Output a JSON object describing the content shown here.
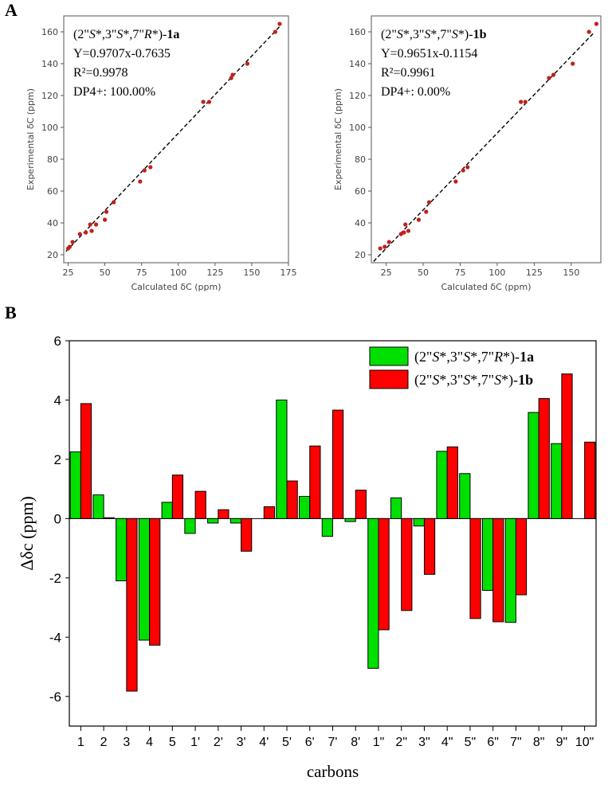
{
  "panels": {
    "a_label": "A",
    "b_label": "B"
  },
  "chart_data": [
    {
      "type": "scatter",
      "id": "1a",
      "xlabel": "Calculated δC (ppm)",
      "ylabel": "Experimental δC (ppm)",
      "xlim": [
        22,
        175
      ],
      "ylim": [
        15,
        170
      ],
      "xticks": [
        25,
        50,
        75,
        100,
        125,
        150,
        175
      ],
      "yticks": [
        20,
        40,
        60,
        80,
        100,
        120,
        140,
        160
      ],
      "fit": {
        "slope": 0.9707,
        "intercept": -0.7635
      },
      "annotations": [
        {
          "pre": "(2\"",
          "i1": "S",
          "m1": "*,3\"",
          "i2": "S",
          "m2": "*,7\"",
          "i3": "R",
          "m3": "*)-",
          "bold": "1a"
        },
        {
          "text": "Y=0.9707x-0.7635"
        },
        {
          "text": "R²=0.9978"
        },
        {
          "text": "DP4+: 100.00%"
        }
      ],
      "points": [
        [
          25,
          24
        ],
        [
          26,
          25
        ],
        [
          28,
          28
        ],
        [
          33,
          33
        ],
        [
          37,
          34
        ],
        [
          40,
          39
        ],
        [
          41,
          35
        ],
        [
          44,
          39
        ],
        [
          50,
          42
        ],
        [
          51,
          47
        ],
        [
          56,
          53
        ],
        [
          74,
          66
        ],
        [
          77,
          73
        ],
        [
          81,
          75
        ],
        [
          117,
          116
        ],
        [
          121,
          116
        ],
        [
          136,
          131
        ],
        [
          137,
          133
        ],
        [
          147,
          140
        ],
        [
          166,
          160
        ],
        [
          169,
          165
        ]
      ],
      "point_color": "#c0201c"
    },
    {
      "type": "scatter",
      "id": "1b",
      "xlabel": "Calculated δC (ppm)",
      "ylabel": "Experimental δC (ppm)",
      "xlim": [
        15,
        170
      ],
      "ylim": [
        15,
        170
      ],
      "xticks": [
        25,
        50,
        75,
        100,
        125,
        150
      ],
      "yticks": [
        20,
        40,
        60,
        80,
        100,
        120,
        140,
        160
      ],
      "fit": {
        "slope": 0.9651,
        "intercept": -0.1154
      },
      "annotations": [
        {
          "pre": "(2\"",
          "i1": "S",
          "m1": "*,3\"",
          "i2": "S",
          "m2": "*,7\"",
          "i3": "S",
          "m3": "*)-",
          "bold": "1b"
        },
        {
          "text": "Y=0.9651x-0.1154"
        },
        {
          "text": "R²=0.9961"
        },
        {
          "text": "DP4+: 0.00%"
        }
      ],
      "points": [
        [
          21,
          24
        ],
        [
          24,
          25
        ],
        [
          27,
          28
        ],
        [
          35,
          33
        ],
        [
          37,
          34
        ],
        [
          38,
          39
        ],
        [
          40,
          35
        ],
        [
          47,
          42
        ],
        [
          52,
          47
        ],
        [
          54,
          53
        ],
        [
          72,
          66
        ],
        [
          77,
          73
        ],
        [
          80,
          75
        ],
        [
          116,
          116
        ],
        [
          119,
          116
        ],
        [
          135,
          131
        ],
        [
          138,
          133
        ],
        [
          151,
          140
        ],
        [
          162,
          160
        ],
        [
          167,
          165
        ]
      ],
      "point_color": "#c0201c"
    },
    {
      "type": "bar",
      "id": "delta",
      "xlabel": "carbons",
      "ylabel": "Δδc (ppm)",
      "ylim": [
        -7,
        6
      ],
      "yticks": [
        -6,
        -4,
        -2,
        0,
        2,
        4,
        6
      ],
      "categories": [
        "1",
        "2",
        "3",
        "4",
        "5",
        "1'",
        "2'",
        "3'",
        "4'",
        "5'",
        "6'",
        "7'",
        "8'",
        "1\"",
        "2\"",
        "3\"",
        "4\"",
        "5\"",
        "6\"",
        "7\"",
        "8\"",
        "9\"",
        "10\""
      ],
      "series": [
        {
          "name": "(2\"S*,3\"S*,7\"R*)-1a",
          "color": "#00e000",
          "values": [
            2.25,
            0.8,
            -2.1,
            -4.1,
            0.55,
            -0.5,
            -0.15,
            -0.15,
            0,
            4.0,
            0.75,
            -0.6,
            -0.1,
            -5.05,
            0.7,
            -0.25,
            2.27,
            1.52,
            -2.42,
            -3.5,
            3.58,
            2.53,
            0
          ]
        },
        {
          "name": "(2\"S*,3\"S*,7\"S*)-1b",
          "color": "#ff0000",
          "values": [
            3.88,
            0.03,
            -5.82,
            -4.27,
            1.47,
            0.92,
            0.3,
            -1.1,
            0.4,
            1.27,
            2.45,
            3.66,
            0.96,
            -3.75,
            -3.1,
            -1.88,
            2.42,
            -3.37,
            -3.48,
            -2.57,
            4.05,
            4.88,
            2.58
          ]
        }
      ],
      "legend": [
        {
          "pre": "(2\"",
          "i1": "S",
          "m1": "*,3\"",
          "i2": "S",
          "m2": "*,7\"",
          "i3": "R",
          "m3": "*)-",
          "bold": "1a"
        },
        {
          "pre": "(2\"",
          "i1": "S",
          "m1": "*,3\"",
          "i2": "S",
          "m2": "*,7\"",
          "i3": "S",
          "m3": "*)-",
          "bold": "1b"
        }
      ],
      "legend_position": "top-right"
    }
  ]
}
